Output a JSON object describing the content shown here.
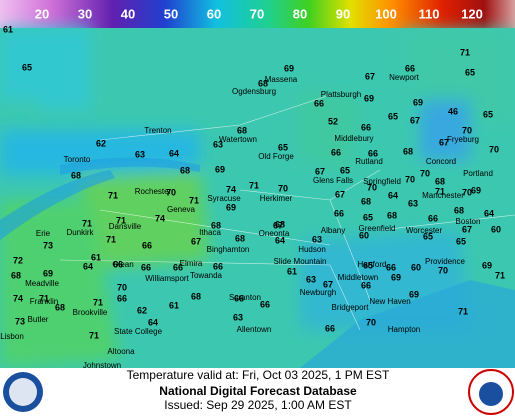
{
  "legend": {
    "labels": [
      "20",
      "30",
      "40",
      "50",
      "60",
      "70",
      "80",
      "90",
      "100",
      "110",
      "120"
    ]
  },
  "map": {
    "cities": [
      "Massena",
      "Ogdensburg",
      "Plattsburgh",
      "Newport",
      "Trenton",
      "Watertown",
      "Old Forge",
      "Middlebury",
      "Toronto",
      "Rochester",
      "Syracuse",
      "Herkimer",
      "Glens Falls",
      "Rutland",
      "Springfield",
      "Fryeburg",
      "Concord",
      "Manchester",
      "Portland",
      "Geneva",
      "Ithaca",
      "Binghamton",
      "Oneonta",
      "Albany",
      "Greenfield",
      "Worcester",
      "Boston",
      "Dunkirk",
      "Erie",
      "Dansville",
      "Olean",
      "Elmira",
      "Towanda",
      "Hudson",
      "Slide Mountain",
      "Hartford",
      "Providence",
      "Meadville",
      "Franklin",
      "Williamsport",
      "Scranton",
      "Newburgh",
      "Middletown",
      "Brookville",
      "State College",
      "Altoona",
      "Johnstown",
      "Allentown",
      "Bridgeport",
      "New Haven",
      "Hampton",
      "Butler",
      "Lisbon"
    ],
    "temperatures": [
      "61",
      "65",
      "69",
      "68",
      "67",
      "66",
      "71",
      "65",
      "66",
      "69",
      "69",
      "65",
      "46",
      "52",
      "67",
      "66",
      "65",
      "70",
      "63",
      "64",
      "62",
      "63",
      "68",
      "65",
      "66",
      "66",
      "68",
      "67",
      "70",
      "70",
      "68",
      "69",
      "71",
      "70",
      "68",
      "71",
      "74",
      "71",
      "70",
      "69",
      "67",
      "65",
      "70",
      "70",
      "68",
      "69",
      "64",
      "71",
      "70",
      "74",
      "71",
      "67",
      "68",
      "64",
      "63",
      "60",
      "68",
      "68",
      "66",
      "67",
      "65",
      "65",
      "63",
      "67",
      "60",
      "71",
      "71",
      "73",
      "72",
      "66",
      "66",
      "66",
      "67",
      "66",
      "68",
      "68",
      "68",
      "66",
      "65",
      "64",
      "61",
      "74",
      "71",
      "68",
      "69",
      "64",
      "61",
      "66",
      "65",
      "66",
      "69",
      "60",
      "70",
      "69",
      "71",
      "71",
      "73",
      "71",
      "68",
      "70",
      "66",
      "62",
      "64",
      "61",
      "68",
      "66",
      "66",
      "63",
      "63",
      "67",
      "66",
      "69",
      "70",
      "66",
      "71"
    ]
  },
  "footer": {
    "valid": "Temperature valid at: Fri, Oct 03 2025, 1 PM EST",
    "title": "National Digital Forecast Database",
    "issued": "Issued: Sep 29 2025, 1:00 AM EST"
  }
}
